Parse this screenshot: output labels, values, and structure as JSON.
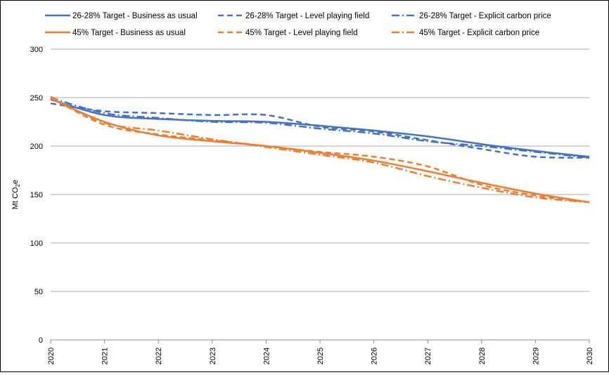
{
  "chart_data": {
    "type": "line",
    "title": "",
    "xlabel": "",
    "ylabel": "Mt CO₂e",
    "ylabel_main": "Mt CO",
    "ylabel_sub": "2",
    "ylabel_tail": "e",
    "xlim": [
      2020,
      2030
    ],
    "ylim": [
      0,
      300
    ],
    "grid": true,
    "legend_position": "top",
    "x_ticks": [
      "2020",
      "2021",
      "2022",
      "2023",
      "2024",
      "2025",
      "2026",
      "2027",
      "2028",
      "2029",
      "2030"
    ],
    "y_ticks": [
      "0",
      "50",
      "100",
      "150",
      "200",
      "250",
      "300"
    ],
    "x": [
      2020,
      2021,
      2022,
      2023,
      2024,
      2025,
      2026,
      2027,
      2028,
      2029,
      2030
    ],
    "series": [
      {
        "name": "26-28% Target - Business as usual",
        "color": "#4472c4",
        "dash": "solid",
        "values": [
          248,
          232,
          228,
          226,
          225,
          221,
          216,
          210,
          202,
          195,
          189
        ]
      },
      {
        "name": "26-28% Target - Level playing field",
        "color": "#4472c4",
        "dash": "dash",
        "values": [
          244,
          236,
          234,
          232,
          232,
          220,
          215,
          206,
          197,
          189,
          188
        ]
      },
      {
        "name": "26-28% Target - Explicit carbon price",
        "color": "#4472c4",
        "dash": "dashdot",
        "values": [
          250,
          234,
          229,
          225,
          224,
          218,
          213,
          205,
          200,
          194,
          188
        ]
      },
      {
        "name": "45% Target - Business as usual",
        "color": "#ed7d31",
        "dash": "solid",
        "values": [
          249,
          225,
          211,
          205,
          200,
          193,
          185,
          174,
          162,
          151,
          142
        ]
      },
      {
        "name": "45% Target - Level playing field",
        "color": "#ed7d31",
        "dash": "dash",
        "values": [
          250,
          222,
          212,
          206,
          200,
          194,
          189,
          179,
          160,
          149,
          142
        ]
      },
      {
        "name": "45% Target - Explicit carbon price",
        "color": "#ed7d31",
        "dash": "dashdot",
        "values": [
          251,
          224,
          216,
          207,
          199,
          191,
          183,
          169,
          157,
          147,
          142
        ]
      }
    ]
  }
}
